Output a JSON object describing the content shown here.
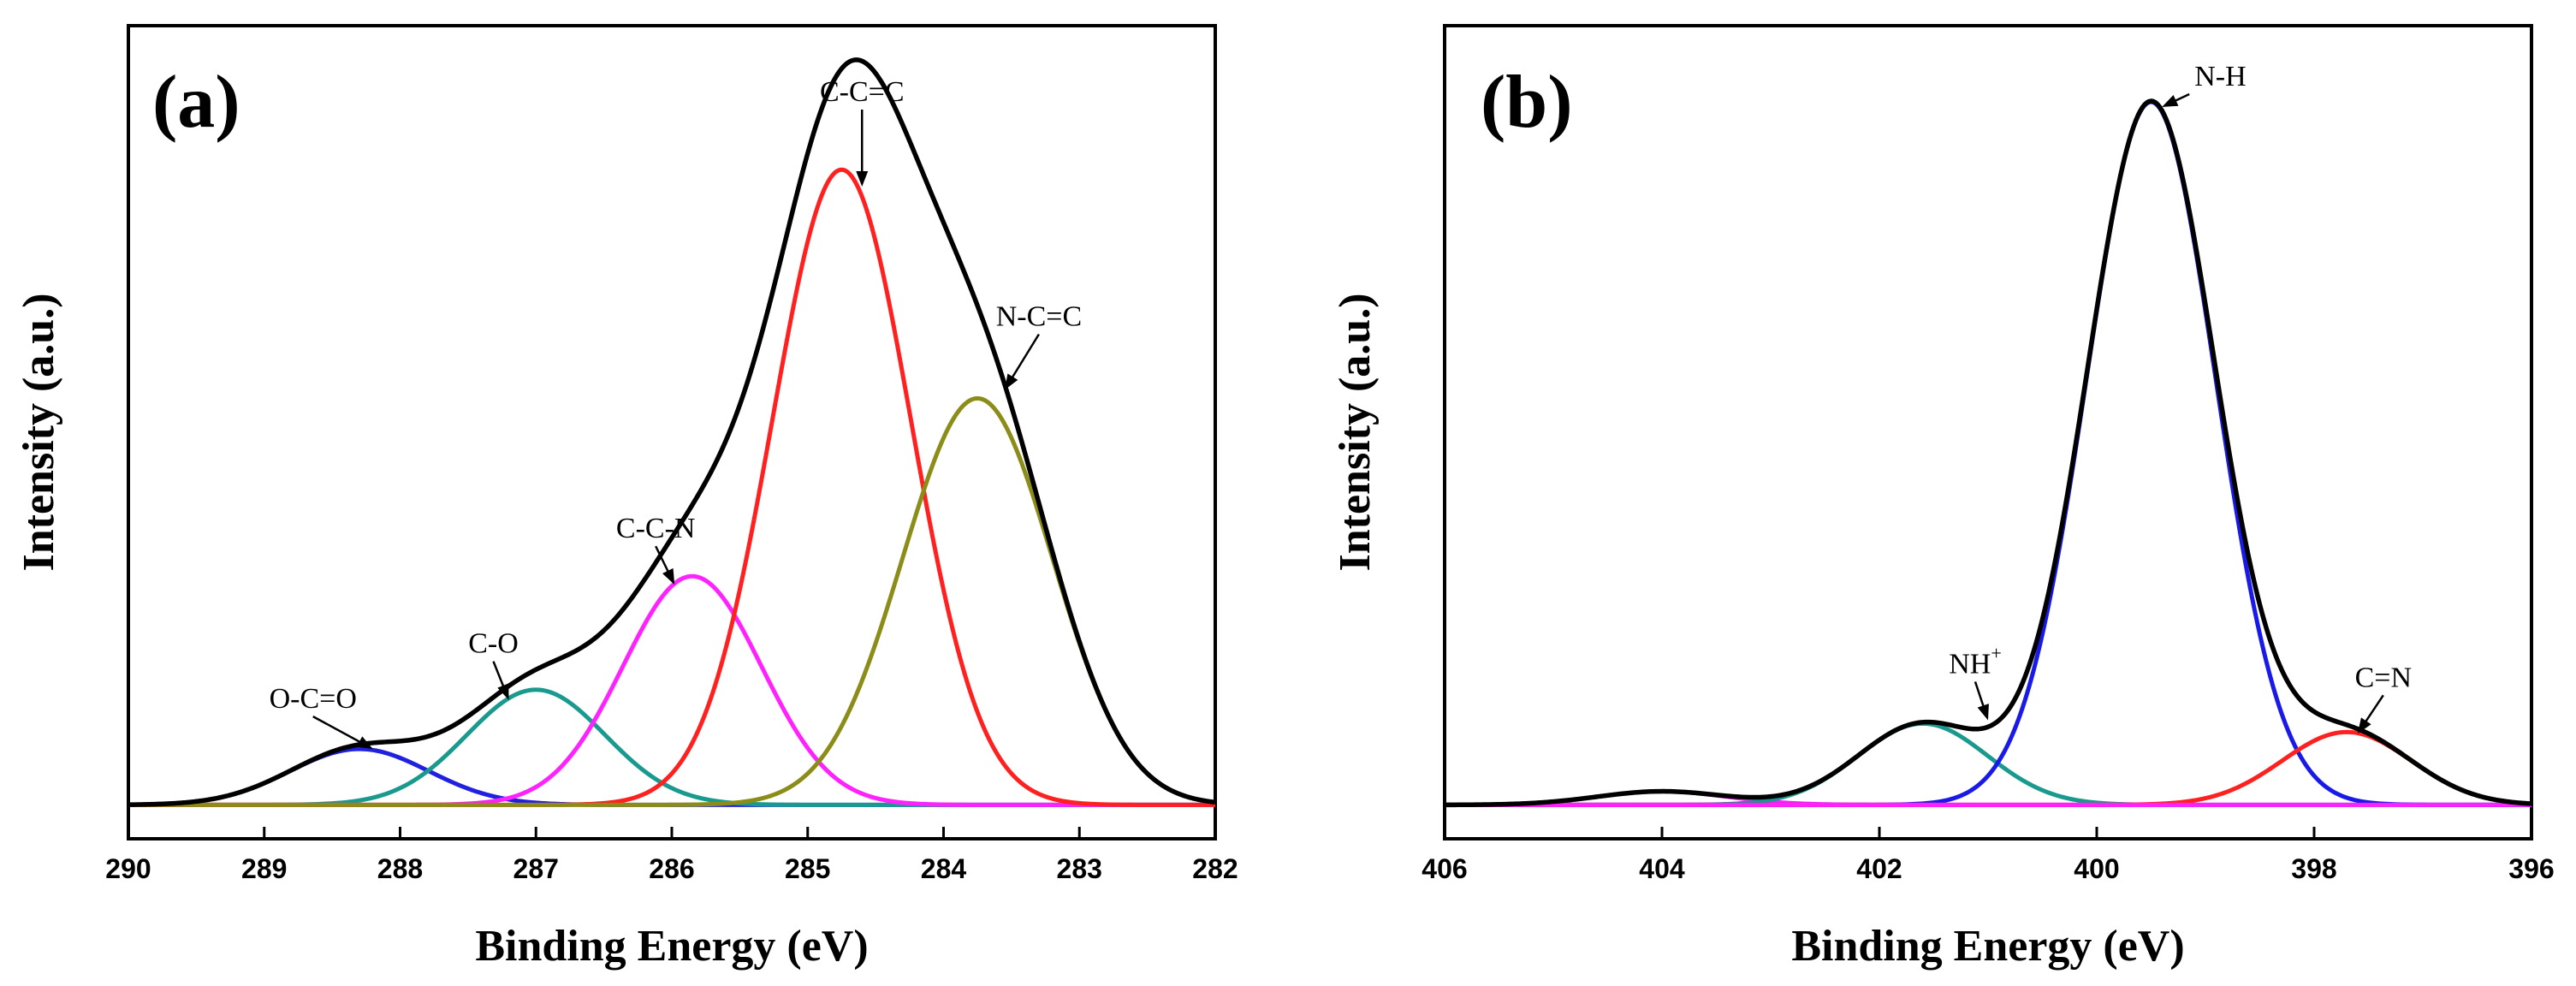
{
  "chart_data": [
    {
      "panel": "(a)",
      "type": "line",
      "xlabel": "Binding Energy (eV)",
      "ylabel": "Intensity (a.u.)",
      "xlim": [
        290,
        282
      ],
      "x_reversed": true,
      "ylim": [
        -0.2,
        4.6
      ],
      "xticks": [
        "290",
        "289",
        "288",
        "287",
        "286",
        "285",
        "284",
        "283",
        "282"
      ],
      "xtick_values": [
        290,
        289,
        288,
        287,
        286,
        285,
        284,
        283,
        282
      ],
      "grid": false,
      "peaks": [
        {
          "name": "O-C=O",
          "center": 288.3,
          "height": 0.33,
          "fwhm": 1.2,
          "color": "#2020e0"
        },
        {
          "name": "C-O",
          "center": 287.0,
          "height": 0.68,
          "fwhm": 1.2,
          "color": "#1a9a8e"
        },
        {
          "name": "C-C-N",
          "center": 285.85,
          "height": 1.35,
          "fwhm": 1.2,
          "color": "#ff22ff"
        },
        {
          "name": "C-C=C",
          "center": 284.75,
          "height": 3.75,
          "fwhm": 1.2,
          "color": "#ff2020"
        },
        {
          "name": "N-C=C",
          "center": 283.75,
          "height": 2.4,
          "fwhm": 1.3,
          "color": "#8c8c18"
        }
      ],
      "envelope": {
        "name": "Envelope",
        "color": "#000000"
      },
      "annotations": [
        {
          "label": "O-C=O",
          "x": 288.2,
          "y": 0.33
        },
        {
          "label": "C-O",
          "x": 287.2,
          "y": 0.62
        },
        {
          "label": "C-C-N",
          "x": 285.98,
          "y": 1.3
        },
        {
          "label": "C-C=C",
          "x": 284.6,
          "y": 3.65
        },
        {
          "label": "N-C=C",
          "x": 283.55,
          "y": 2.45
        }
      ]
    },
    {
      "panel": "(b)",
      "type": "line",
      "xlabel": "Binding Energy (eV)",
      "ylabel": "Intensity (a.u.)",
      "xlim": [
        406,
        396
      ],
      "x_reversed": true,
      "ylim": [
        -0.2,
        4.6
      ],
      "xticks": [
        "406",
        "404",
        "402",
        "400",
        "398",
        "396"
      ],
      "xtick_values": [
        406,
        404,
        402,
        400,
        398,
        396
      ],
      "grid": false,
      "peaks": [
        {
          "name": "minor",
          "center": 404.0,
          "height": 0.08,
          "fwhm": 1.4,
          "color": "#ff22ff"
        },
        {
          "name": "NH+",
          "center": 401.6,
          "height": 0.48,
          "fwhm": 1.4,
          "color": "#1a9a8e"
        },
        {
          "name": "N-H",
          "center": 399.5,
          "height": 4.15,
          "fwhm": 1.4,
          "color": "#1a1ae8"
        },
        {
          "name": "C=N",
          "center": 397.7,
          "height": 0.43,
          "fwhm": 1.4,
          "color": "#ff2020"
        }
      ],
      "envelope": {
        "name": "Envelope",
        "color": "#000000"
      },
      "baseline_color": "#ff22ff",
      "annotations": [
        {
          "label": "N-H",
          "x": 399.4,
          "y": 4.12
        },
        {
          "label": "NH",
          "superscript": "+",
          "x": 401.0,
          "y": 0.5
        },
        {
          "label": "C=N",
          "x": 397.6,
          "y": 0.42
        }
      ]
    }
  ]
}
